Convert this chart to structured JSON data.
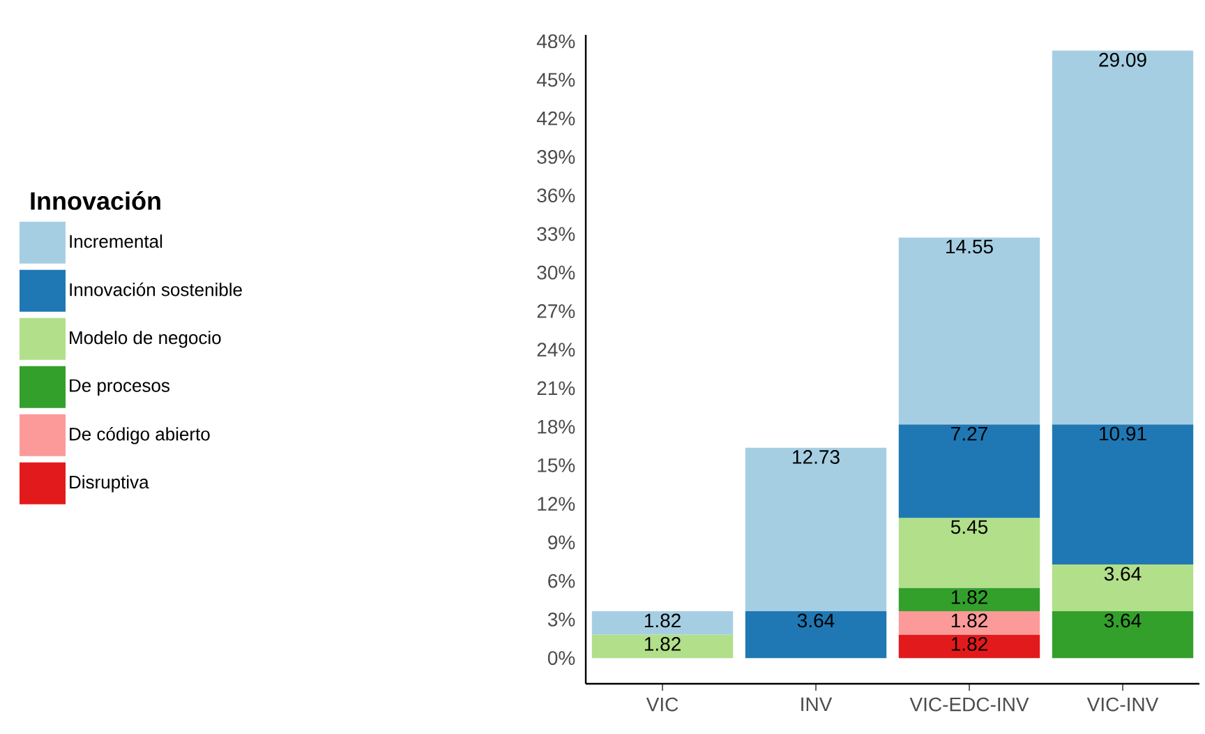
{
  "chart_data": {
    "type": "bar",
    "stacked": true,
    "legend_title": "Innovación",
    "legend": "left",
    "data_labels": true,
    "categories": [
      "VIC",
      "INV",
      "VIC-EDC-INV",
      "VIC-INV"
    ],
    "series": [
      {
        "name": "Disruptiva",
        "color": "#e31a1c",
        "values": [
          null,
          null,
          1.82,
          null
        ]
      },
      {
        "name": "De código abierto",
        "color": "#fb9a99",
        "values": [
          null,
          null,
          1.82,
          null
        ]
      },
      {
        "name": "De procesos",
        "color": "#33a02c",
        "values": [
          null,
          null,
          1.82,
          3.64
        ]
      },
      {
        "name": "Modelo de negocio",
        "color": "#b2df8a",
        "values": [
          1.82,
          null,
          5.45,
          3.64
        ]
      },
      {
        "name": "Innovación sostenible",
        "color": "#1f78b4",
        "values": [
          null,
          3.64,
          7.27,
          10.91
        ]
      },
      {
        "name": "Incremental",
        "color": "#a6cee3",
        "values": [
          1.82,
          12.73,
          14.55,
          29.09
        ]
      }
    ],
    "ylim": [
      -2,
      48.5
    ],
    "yticks": [
      {
        "value": 0,
        "label": "0%"
      },
      {
        "value": 3,
        "label": "3%"
      },
      {
        "value": 6,
        "label": "6%"
      },
      {
        "value": 9,
        "label": "9%"
      },
      {
        "value": 12,
        "label": "12%"
      },
      {
        "value": 15,
        "label": "15%"
      },
      {
        "value": 18,
        "label": "18%"
      },
      {
        "value": 21,
        "label": "21%"
      },
      {
        "value": 24,
        "label": "24%"
      },
      {
        "value": 27,
        "label": "27%"
      },
      {
        "value": 30,
        "label": "30%"
      },
      {
        "value": 33,
        "label": "33%"
      },
      {
        "value": 36,
        "label": "36%"
      },
      {
        "value": 39,
        "label": "39%"
      },
      {
        "value": 42,
        "label": "42%"
      },
      {
        "value": 45,
        "label": "45%"
      },
      {
        "value": 48,
        "label": "48%"
      }
    ]
  }
}
